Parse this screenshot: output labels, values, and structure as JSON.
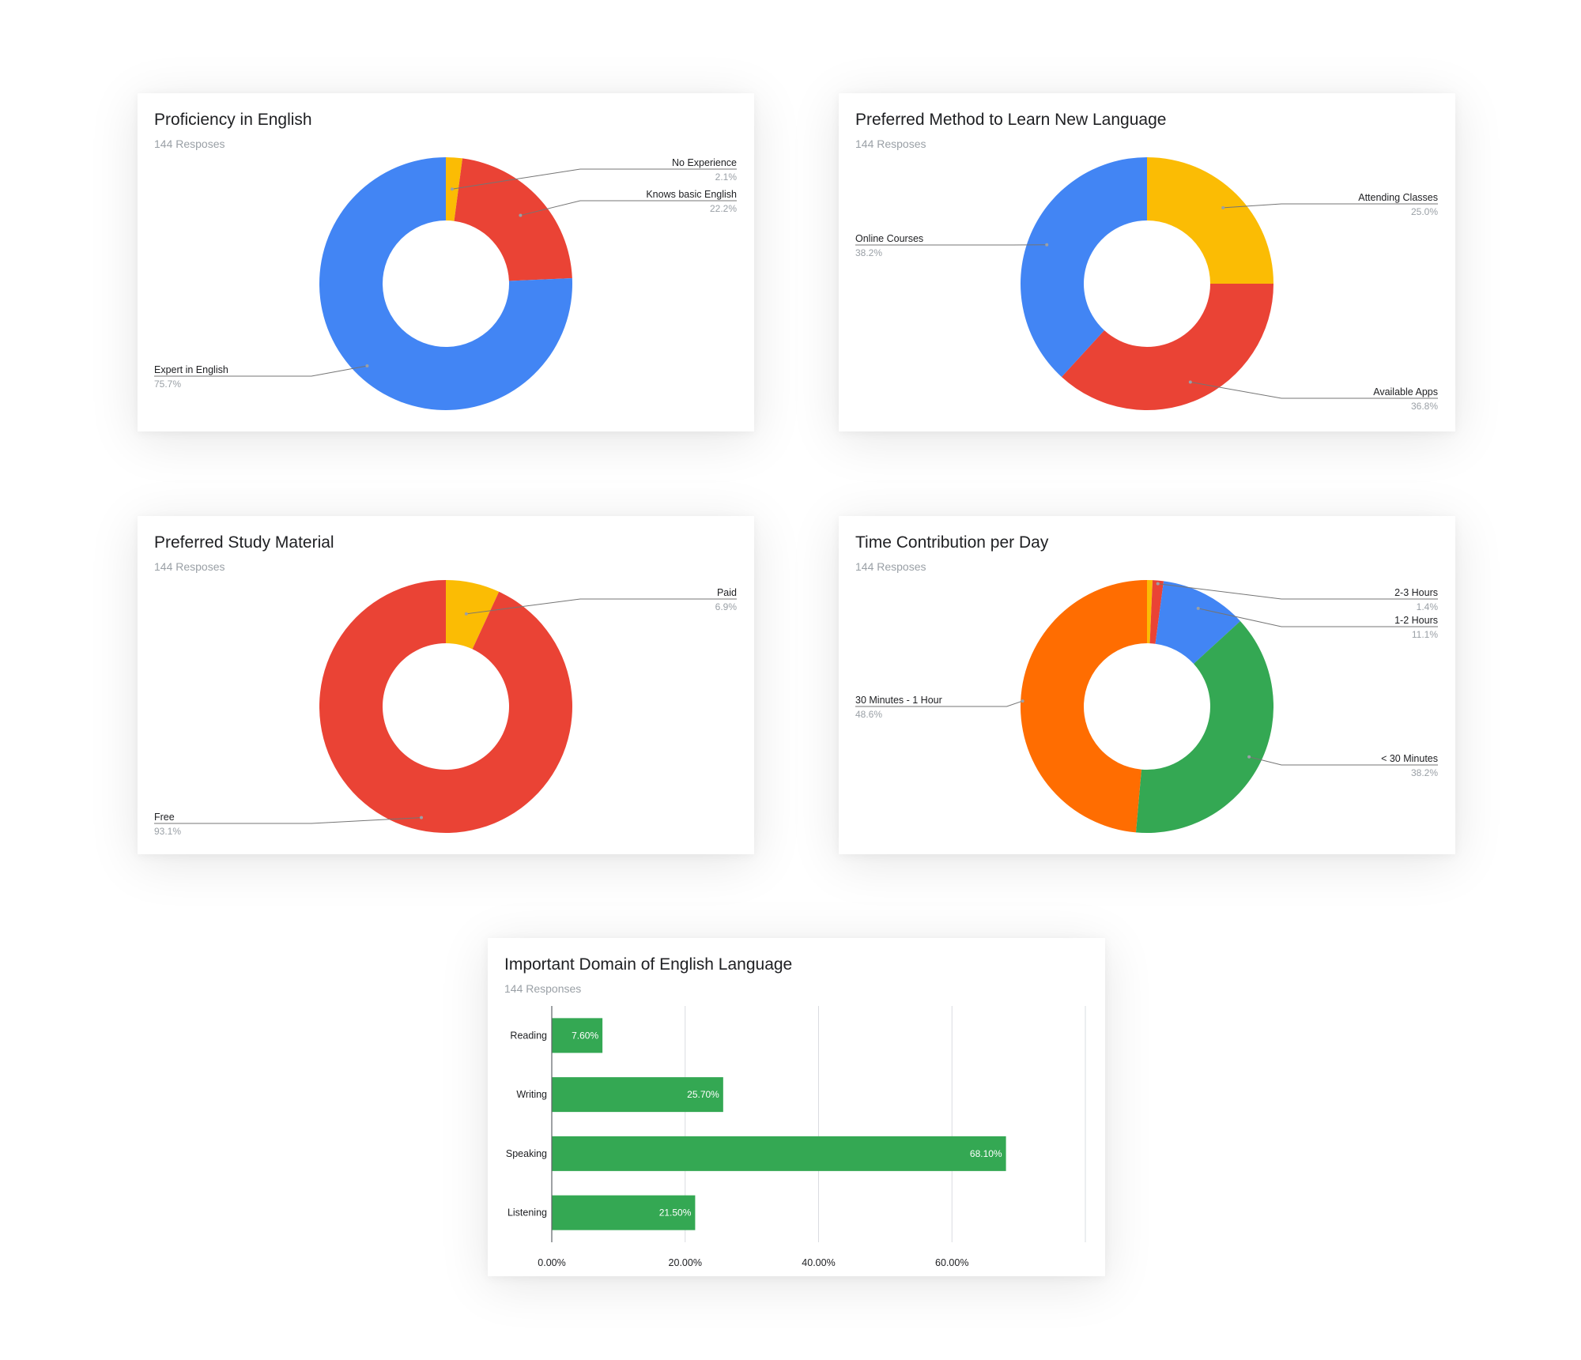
{
  "chart_data": [
    {
      "type": "pie",
      "title": "Proficiency in English",
      "subtitle": "144 Resposes",
      "series": [
        {
          "name": "No Experience",
          "value": 2.1,
          "label": "2.1%",
          "color": "#fbbc04"
        },
        {
          "name": "Knows basic English",
          "value": 22.2,
          "label": "22.2%",
          "color": "#ea4335"
        },
        {
          "name": "Expert in English",
          "value": 75.7,
          "label": "75.7%",
          "color": "#4285f4"
        }
      ]
    },
    {
      "type": "pie",
      "title": "Preferred Method to Learn New Language",
      "subtitle": "144 Resposes",
      "series": [
        {
          "name": "Attending Classes",
          "value": 25.0,
          "label": "25.0%",
          "color": "#fbbc04"
        },
        {
          "name": "Available Apps",
          "value": 36.8,
          "label": "36.8%",
          "color": "#ea4335"
        },
        {
          "name": "Online Courses",
          "value": 38.2,
          "label": "38.2%",
          "color": "#4285f4"
        }
      ]
    },
    {
      "type": "pie",
      "title": "Preferred Study Material",
      "subtitle": "144 Resposes",
      "series": [
        {
          "name": "Paid",
          "value": 6.9,
          "label": "6.9%",
          "color": "#fbbc04"
        },
        {
          "name": "Free",
          "value": 93.1,
          "label": "93.1%",
          "color": "#ea4335"
        }
      ]
    },
    {
      "type": "pie",
      "title": "Time Contribution per Day",
      "subtitle": "144 Resposes",
      "series": [
        {
          "name": "",
          "value": 0.7,
          "label": "",
          "color": "#fbbc04"
        },
        {
          "name": "2-3 Hours",
          "value": 1.4,
          "label": "1.4%",
          "color": "#ea4335"
        },
        {
          "name": "1-2 Hours",
          "value": 11.1,
          "label": "11.1%",
          "color": "#4285f4"
        },
        {
          "name": "< 30 Minutes",
          "value": 38.2,
          "label": "38.2%",
          "color": "#34a853"
        },
        {
          "name": "30 Minutes - 1 Hour",
          "value": 48.6,
          "label": "48.6%",
          "color": "#ff6d01"
        }
      ]
    },
    {
      "type": "bar",
      "orientation": "horizontal",
      "title": "Important Domain of English Language",
      "subtitle": "144 Responses",
      "categories": [
        "Reading",
        "Writing",
        "Speaking",
        "Listening"
      ],
      "values": [
        7.6,
        25.7,
        68.1,
        21.5
      ],
      "value_labels": [
        "7.60%",
        "25.70%",
        "68.10%",
        "21.50%"
      ],
      "xlim": [
        0,
        80
      ],
      "x_ticks": [
        0,
        20,
        40,
        60
      ],
      "x_tick_labels": [
        "0.00%",
        "20.00%",
        "40.00%",
        "60.00%"
      ],
      "color": "#34a853",
      "grid": true
    }
  ]
}
